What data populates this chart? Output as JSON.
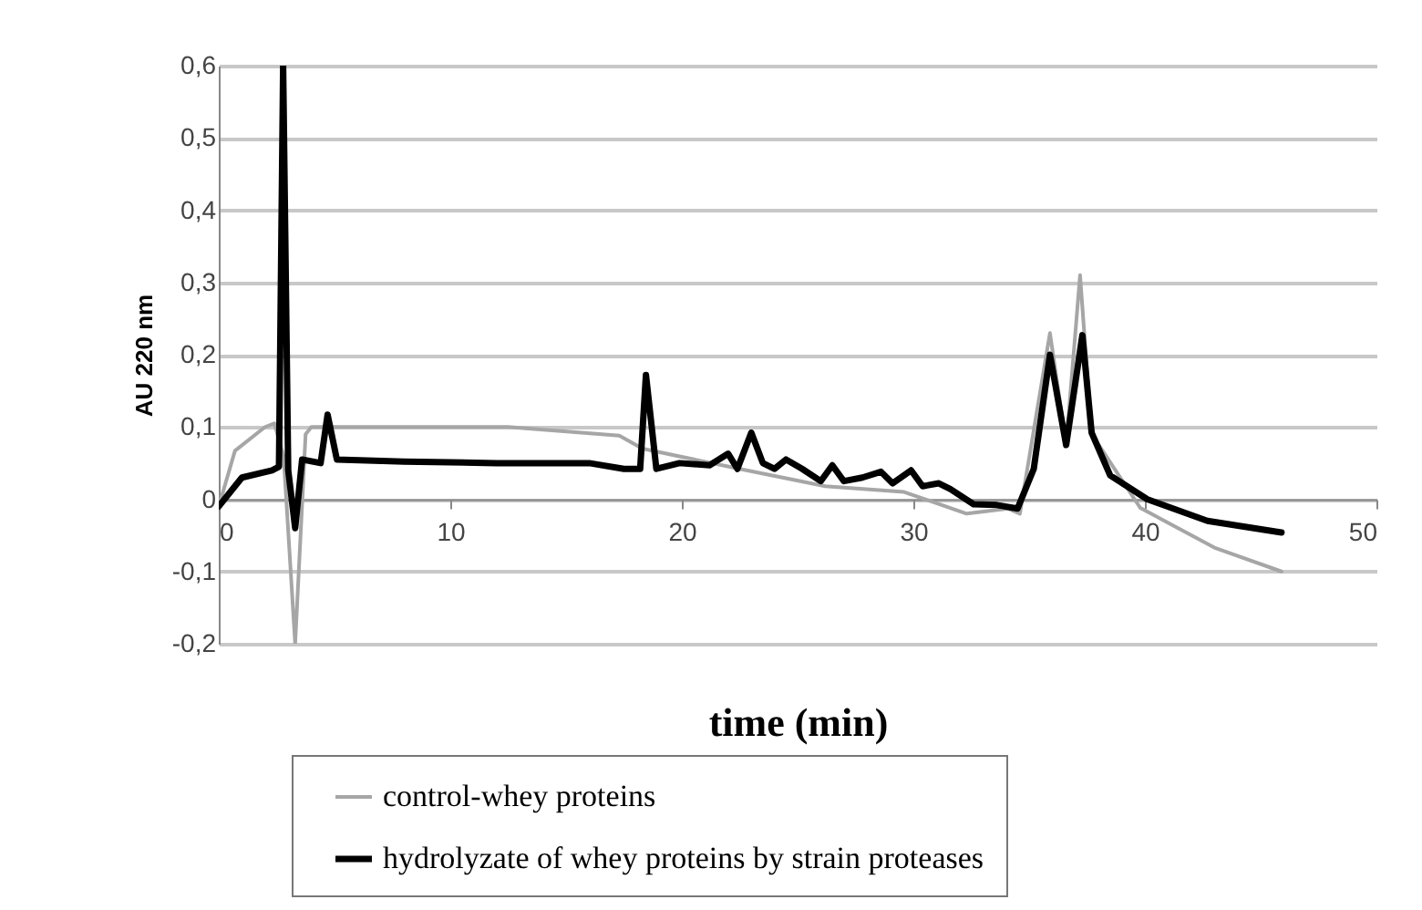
{
  "chart_data": {
    "type": "line",
    "xlabel": "time (min)",
    "ylabel": "AU 220 nm",
    "xlim": [
      0,
      50
    ],
    "xticks": [
      0,
      10,
      20,
      30,
      40,
      50
    ],
    "ylim": [
      -0.2,
      0.6
    ],
    "yticks": [
      {
        "value": -0.2,
        "label": "-0,2"
      },
      {
        "value": -0.1,
        "label": "-0,1"
      },
      {
        "value": 0,
        "label": "0"
      },
      {
        "value": 0.1,
        "label": "0,1"
      },
      {
        "value": 0.2,
        "label": "0,2"
      },
      {
        "value": 0.3,
        "label": "0,3"
      },
      {
        "value": 0.4,
        "label": "0,4"
      },
      {
        "value": 0.5,
        "label": "0,5"
      },
      {
        "value": 0.6,
        "label": "0,6"
      }
    ],
    "grid": "y",
    "legend": "bottom",
    "series": [
      {
        "name": "control-whey proteins",
        "color": "#a6a6a6",
        "x": [
          0,
          0.7,
          2.0,
          2.4,
          2.8,
          3.3,
          3.75,
          4.0,
          8,
          12.5,
          17.3,
          18.3,
          22.5,
          26.2,
          29.6,
          32.3,
          34.1,
          34.6,
          35.9,
          36.6,
          37.2,
          37.7,
          39.8,
          43.0,
          45.9
        ],
        "values": [
          -0.01,
          0.067,
          0.1,
          0.105,
          0.06,
          -0.2,
          0.09,
          0.1,
          0.1,
          0.1,
          0.088,
          0.07,
          0.042,
          0.018,
          0.01,
          -0.02,
          -0.013,
          -0.02,
          0.23,
          0.075,
          0.31,
          0.09,
          -0.012,
          -0.067,
          -0.1
        ]
      },
      {
        "name": "hydrolyzate of whey proteins by strain proteases",
        "color": "#000000",
        "x": [
          0,
          1.0,
          2.3,
          2.6,
          2.78,
          3.0,
          3.3,
          3.6,
          4.4,
          4.7,
          5.1,
          8,
          12,
          16,
          17.5,
          18.2,
          18.45,
          18.9,
          19.9,
          21.2,
          22.0,
          22.4,
          23.0,
          23.5,
          24.0,
          24.5,
          25.2,
          26.0,
          26.5,
          27.0,
          27.8,
          28.6,
          29.1,
          29.9,
          30.4,
          31.1,
          31.6,
          32.6,
          33.6,
          34.5,
          35.2,
          35.9,
          36.6,
          37.3,
          37.7,
          38.5,
          40.1,
          42.7,
          45.9
        ],
        "values": [
          -0.01,
          0.03,
          0.04,
          0.045,
          0.6,
          0.04,
          -0.04,
          0.055,
          0.05,
          0.117,
          0.055,
          0.052,
          0.05,
          0.05,
          0.042,
          0.042,
          0.172,
          0.042,
          0.05,
          0.047,
          0.063,
          0.042,
          0.092,
          0.05,
          0.042,
          0.055,
          0.042,
          0.025,
          0.047,
          0.025,
          0.03,
          0.038,
          0.022,
          0.04,
          0.018,
          0.022,
          0.014,
          -0.007,
          -0.008,
          -0.013,
          0.042,
          0.2,
          0.075,
          0.227,
          0.092,
          0.033,
          0,
          -0.03,
          -0.046
        ]
      }
    ]
  }
}
